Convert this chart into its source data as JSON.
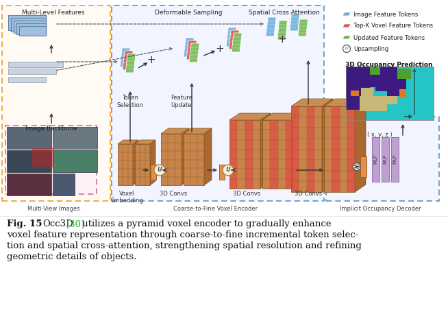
{
  "bg_color": "#ffffff",
  "fig_label": "Fig. 15",
  "fig_title": "Occ3D",
  "fig_ref": "[30]",
  "fig_ref_color": "#22aa22",
  "caption_lines": [
    " utilizes a pyramid voxel encoder to gradually enhance",
    "voxel feature representation through coarse-to-fine incremental token selec-",
    "tion and spatial cross-attention, strengthening spatial resolution and refining",
    "geometric details of objects."
  ],
  "legend_labels": [
    "Image Feature Tokens",
    "Top-K Voxel Feature Tokens",
    "Updated Feature Tokens",
    "Upsampling"
  ],
  "legend_colors": [
    "#6aaed6",
    "#e05050",
    "#70b050",
    "#555555"
  ],
  "sec_multi": "Multi-Level Features",
  "sec_deformable": "Deformable Sampling",
  "sec_spatial": "Spatial Cross Attention",
  "sec_multiview": "Multi-View Images",
  "sec_coarse": "Coarse-to-Fine Voxel Encoder",
  "sec_implicit": "Implicit Occupancy Decoder",
  "sec_image_backbone": "Image Backbone",
  "sec_token_selection": "Token\nSelection",
  "sec_feature_update": "Feature\nUpdate",
  "sec_voxel_embedding": "Voxel\nEmbedding",
  "sec_3dconvs": "3D Convs",
  "sec_occ_pred": "3D Occupancy Prediction",
  "sec_xyz": "( x, y, z )",
  "orange_dash_color": "#e8a020",
  "blue_dash_color": "#6090c0",
  "pink_dash_color": "#d070a0",
  "voxel_fc": "#c8844a",
  "voxel_top": "#d89858",
  "voxel_right": "#a86830",
  "voxel_ec": "#7a5020",
  "mlp_fc": "#c0a0d0",
  "mlp_ec": "#9070b0"
}
